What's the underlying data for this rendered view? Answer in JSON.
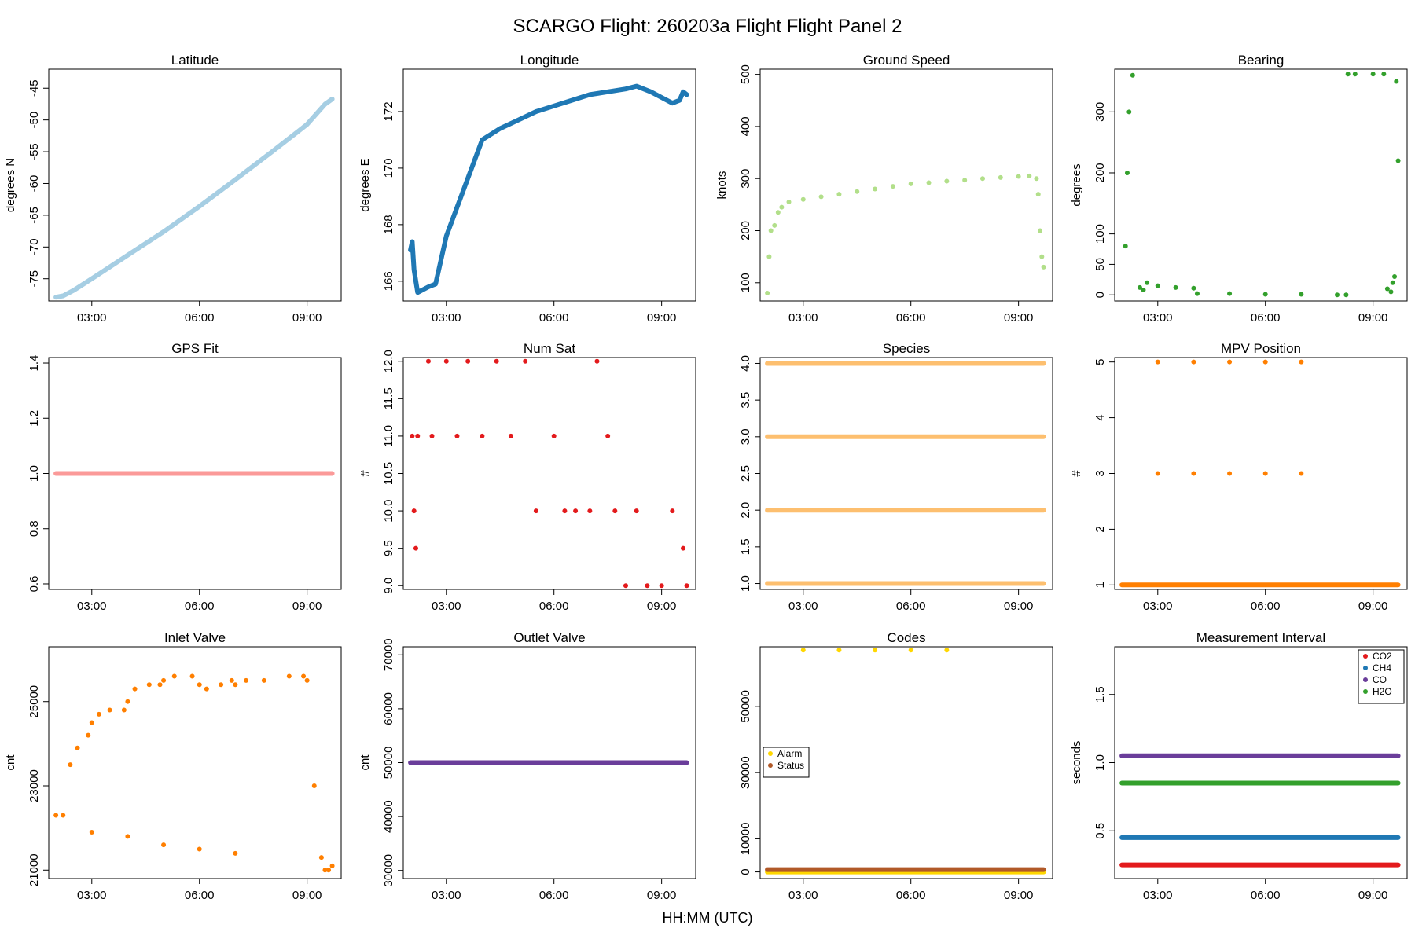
{
  "title": "SCARGO Flight: 260203a  Flight Flight  Panel 2",
  "xlabel": "HH:MM (UTC)",
  "chart_data": [
    {
      "type": "line",
      "title": "Latitude",
      "ylabel": "degrees N",
      "xlim": [
        1.8,
        9.95
      ],
      "ylim": [
        -78.5,
        -42
      ],
      "yticks": [
        -75,
        -70,
        -65,
        -60,
        -55,
        -50,
        -45
      ],
      "x_ticks": [
        "03:00",
        "06:00",
        "09:00"
      ],
      "color": "#a6cee3",
      "series": [
        {
          "x": [
            2.0,
            2.2,
            2.5,
            3.0,
            4.0,
            5.0,
            6.0,
            7.0,
            8.0,
            9.0,
            9.5,
            9.7
          ],
          "y": [
            -77.9,
            -77.7,
            -76.8,
            -75.0,
            -71.3,
            -67.6,
            -63.6,
            -59.4,
            -55.1,
            -50.7,
            -47.5,
            -46.7
          ]
        }
      ]
    },
    {
      "type": "line",
      "title": "Longitude",
      "ylabel": "degrees E",
      "xlim": [
        1.8,
        9.95
      ],
      "ylim": [
        165.3,
        173.5
      ],
      "yticks": [
        166,
        168,
        170,
        172
      ],
      "x_ticks": [
        "03:00",
        "06:00",
        "09:00"
      ],
      "color": "#1f78b4",
      "series": [
        {
          "x": [
            2.0,
            2.05,
            2.1,
            2.2,
            2.5,
            2.7,
            3.0,
            3.5,
            4.0,
            4.5,
            5.0,
            5.5,
            6.0,
            6.5,
            7.0,
            7.5,
            8.0,
            8.3,
            8.7,
            9.0,
            9.3,
            9.5,
            9.6,
            9.7
          ],
          "y": [
            167.1,
            167.4,
            166.4,
            165.6,
            165.8,
            165.9,
            167.6,
            169.3,
            171.0,
            171.4,
            171.7,
            172.0,
            172.2,
            172.4,
            172.6,
            172.7,
            172.8,
            172.9,
            172.7,
            172.5,
            172.3,
            172.4,
            172.7,
            172.6
          ]
        }
      ]
    },
    {
      "type": "scatter",
      "title": "Ground Speed",
      "ylabel": "knots",
      "xlim": [
        1.8,
        9.95
      ],
      "ylim": [
        65,
        510
      ],
      "yticks": [
        100,
        200,
        300,
        400,
        500
      ],
      "x_ticks": [
        "03:00",
        "06:00",
        "09:00"
      ],
      "color": "#b2df8a",
      "series": [
        {
          "x": [
            2.0,
            2.05,
            2.1,
            2.2,
            2.3,
            2.4,
            2.6,
            3.0,
            3.5,
            4.0,
            4.5,
            5.0,
            5.5,
            6.0,
            6.5,
            7.0,
            7.5,
            8.0,
            8.5,
            9.0,
            9.3,
            9.5,
            9.55,
            9.6,
            9.65,
            9.7
          ],
          "y": [
            80,
            150,
            200,
            210,
            235,
            245,
            255,
            260,
            265,
            270,
            275,
            280,
            285,
            290,
            292,
            295,
            297,
            300,
            302,
            304,
            305,
            300,
            270,
            200,
            150,
            130
          ]
        }
      ]
    },
    {
      "type": "scatter",
      "title": "Bearing",
      "ylabel": "degrees",
      "xlim": [
        1.8,
        9.95
      ],
      "ylim": [
        -10,
        370
      ],
      "yticks": [
        0,
        50,
        100,
        200,
        300
      ],
      "x_ticks": [
        "03:00",
        "06:00",
        "09:00"
      ],
      "color": "#33a02c",
      "series": [
        {
          "x": [
            2.1,
            2.15,
            2.2,
            2.3,
            2.5,
            2.6,
            2.7,
            3.0,
            3.5,
            4.0,
            4.1,
            5.0,
            6.0,
            7.0,
            8.0,
            8.25,
            8.3,
            8.5,
            9.0,
            9.3,
            9.4,
            9.5,
            9.55,
            9.6,
            9.65,
            9.7
          ],
          "y": [
            80,
            200,
            300,
            360,
            12,
            8,
            20,
            15,
            12,
            11,
            2,
            2,
            1,
            1,
            0,
            0,
            362,
            362,
            362,
            362,
            10,
            5,
            20,
            30,
            350,
            220
          ]
        }
      ]
    },
    {
      "type": "line",
      "title": "GPS Fit",
      "ylabel": "",
      "xlim": [
        1.8,
        9.95
      ],
      "ylim": [
        0.58,
        1.42
      ],
      "yticks": [
        0.6,
        0.8,
        1.0,
        1.2,
        1.4
      ],
      "x_ticks": [
        "03:00",
        "06:00",
        "09:00"
      ],
      "color": "#fb9a99",
      "series": [
        {
          "x": [
            2.0,
            9.7
          ],
          "y": [
            1.0,
            1.0
          ]
        }
      ]
    },
    {
      "type": "scatter",
      "title": "Num Sat",
      "ylabel": "#",
      "xlim": [
        1.8,
        9.95
      ],
      "ylim": [
        8.95,
        12.05
      ],
      "yticks": [
        9.0,
        9.5,
        10.0,
        10.5,
        11.0,
        11.5,
        12.0
      ],
      "x_ticks": [
        "03:00",
        "06:00",
        "09:00"
      ],
      "color": "#e31a1c",
      "series": [
        {
          "x": [
            2.05,
            2.1,
            2.15,
            2.2,
            2.5,
            2.6,
            3.0,
            3.3,
            3.6,
            4.0,
            4.4,
            4.8,
            5.2,
            5.5,
            6.0,
            6.3,
            6.6,
            7.0,
            7.2,
            7.5,
            7.7,
            8.0,
            8.3,
            8.6,
            9.0,
            9.3,
            9.6,
            9.7
          ],
          "y": [
            11.0,
            10.0,
            9.5,
            11.0,
            12.0,
            11.0,
            12.0,
            11.0,
            12.0,
            11.0,
            12.0,
            11.0,
            12.0,
            10.0,
            11.0,
            10.0,
            10.0,
            10.0,
            12.0,
            11.0,
            10.0,
            9.0,
            10.0,
            9.0,
            9.0,
            10.0,
            9.5,
            9.0
          ]
        }
      ]
    },
    {
      "type": "scatter",
      "title": "Species",
      "ylabel": "",
      "xlim": [
        1.8,
        9.95
      ],
      "ylim": [
        0.92,
        4.08
      ],
      "yticks": [
        1.0,
        1.5,
        2.0,
        2.5,
        3.0,
        3.5,
        4.0
      ],
      "x_ticks": [
        "03:00",
        "06:00",
        "09:00"
      ],
      "color": "#fdbf6f",
      "series": [
        {
          "x": [
            2.0,
            9.7
          ],
          "y": [
            1.0,
            1.0
          ]
        },
        {
          "x": [
            2.0,
            9.7
          ],
          "y": [
            2.0,
            2.0
          ]
        },
        {
          "x": [
            2.0,
            9.7
          ],
          "y": [
            3.0,
            3.0
          ]
        },
        {
          "x": [
            2.0,
            9.7
          ],
          "y": [
            4.0,
            4.0
          ]
        }
      ]
    },
    {
      "type": "scatter",
      "title": "MPV Position",
      "ylabel": "#",
      "xlim": [
        1.8,
        9.95
      ],
      "ylim": [
        0.92,
        5.08
      ],
      "yticks": [
        1,
        2,
        3,
        4,
        5
      ],
      "x_ticks": [
        "03:00",
        "06:00",
        "09:00"
      ],
      "color": "#ff7f00",
      "series": [
        {
          "x": [
            2.0,
            9.7
          ],
          "y": [
            1,
            1
          ]
        },
        {
          "x": [
            3.0,
            4.0,
            5.0,
            6.0,
            7.0
          ],
          "y": [
            3,
            3,
            3,
            3,
            3
          ]
        },
        {
          "x": [
            3.0,
            4.0,
            5.0,
            6.0,
            7.0
          ],
          "y": [
            5,
            5,
            5,
            5,
            5
          ]
        }
      ]
    },
    {
      "type": "scatter",
      "title": "Inlet Valve",
      "ylabel": "cnt",
      "xlim": [
        1.8,
        9.95
      ],
      "ylim": [
        20800,
        26300
      ],
      "yticks": [
        21000,
        23000,
        25000
      ],
      "x_ticks": [
        "03:00",
        "06:00",
        "09:00"
      ],
      "color": "#ff7f00",
      "series": [
        {
          "x": [
            2.0,
            2.2,
            2.4,
            2.6,
            2.9,
            3.0,
            3.2,
            3.5,
            3.9,
            4.0,
            4.2,
            4.6,
            4.9,
            5.0,
            5.3,
            5.8,
            6.0,
            6.2,
            6.6,
            6.9,
            7.0,
            7.3,
            7.8,
            8.5,
            8.9,
            9.0,
            9.2,
            9.4,
            9.5,
            9.6,
            9.7
          ],
          "y": [
            22300,
            22300,
            23500,
            23900,
            24200,
            24500,
            24700,
            24800,
            24800,
            25000,
            25300,
            25400,
            25400,
            25500,
            25600,
            25600,
            25400,
            25300,
            25400,
            25500,
            25400,
            25500,
            25500,
            25600,
            25600,
            25500,
            23000,
            21300,
            21000,
            21000,
            21100
          ]
        },
        {
          "x": [
            3.0,
            4.0,
            5.0,
            6.0,
            7.0
          ],
          "y": [
            21900,
            21800,
            21600,
            21500,
            21400
          ]
        }
      ]
    },
    {
      "type": "line",
      "title": "Outlet Valve",
      "ylabel": "cnt",
      "xlim": [
        1.8,
        9.95
      ],
      "ylim": [
        28500,
        71500
      ],
      "yticks": [
        30000,
        40000,
        50000,
        60000,
        70000
      ],
      "x_ticks": [
        "03:00",
        "06:00",
        "09:00"
      ],
      "color": "#6a3d9a",
      "series": [
        {
          "x": [
            2.0,
            9.7
          ],
          "y": [
            50000,
            50000
          ]
        }
      ]
    },
    {
      "type": "scatter",
      "title": "Codes",
      "ylabel": "",
      "xlim": [
        1.8,
        9.95
      ],
      "ylim": [
        -2000,
        68000
      ],
      "yticks": [
        0,
        10000,
        30000,
        50000
      ],
      "x_ticks": [
        "03:00",
        "06:00",
        "09:00"
      ],
      "legend": {
        "position": "left",
        "entries": [
          "Alarm",
          "Status"
        ]
      },
      "series": [
        {
          "name": "Alarm",
          "color": "#ffd700",
          "x": [
            3.0,
            4.0,
            5.0,
            6.0,
            7.0
          ],
          "y": [
            67000,
            67000,
            67000,
            67000,
            67000
          ]
        },
        {
          "name": "Alarm",
          "color": "#ffd700",
          "x": [
            2.0,
            9.7
          ],
          "y": [
            0,
            0
          ]
        },
        {
          "name": "Status",
          "color": "#b15928",
          "x": [
            2.0,
            9.7
          ],
          "y": [
            700,
            700
          ]
        }
      ]
    },
    {
      "type": "scatter",
      "title": "Measurement Interval",
      "ylabel": "seconds",
      "xlim": [
        1.8,
        9.95
      ],
      "ylim": [
        0.15,
        1.85
      ],
      "yticks": [
        0.5,
        1.0,
        1.5
      ],
      "x_ticks": [
        "03:00",
        "06:00",
        "09:00"
      ],
      "legend": {
        "position": "top-right",
        "entries": [
          "CO2",
          "CH4",
          "CO",
          "H2O"
        ]
      },
      "series": [
        {
          "name": "CO2",
          "color": "#e31a1c",
          "x": [
            2.0,
            9.7
          ],
          "y": [
            0.25,
            0.25
          ]
        },
        {
          "name": "CH4",
          "color": "#1f78b4",
          "x": [
            2.0,
            9.7
          ],
          "y": [
            0.45,
            0.45
          ]
        },
        {
          "name": "CO",
          "color": "#6a3d9a",
          "x": [
            2.0,
            9.7
          ],
          "y": [
            1.05,
            1.05
          ]
        },
        {
          "name": "H2O",
          "color": "#33a02c",
          "x": [
            2.0,
            9.7
          ],
          "y": [
            0.85,
            0.85
          ]
        }
      ]
    }
  ]
}
